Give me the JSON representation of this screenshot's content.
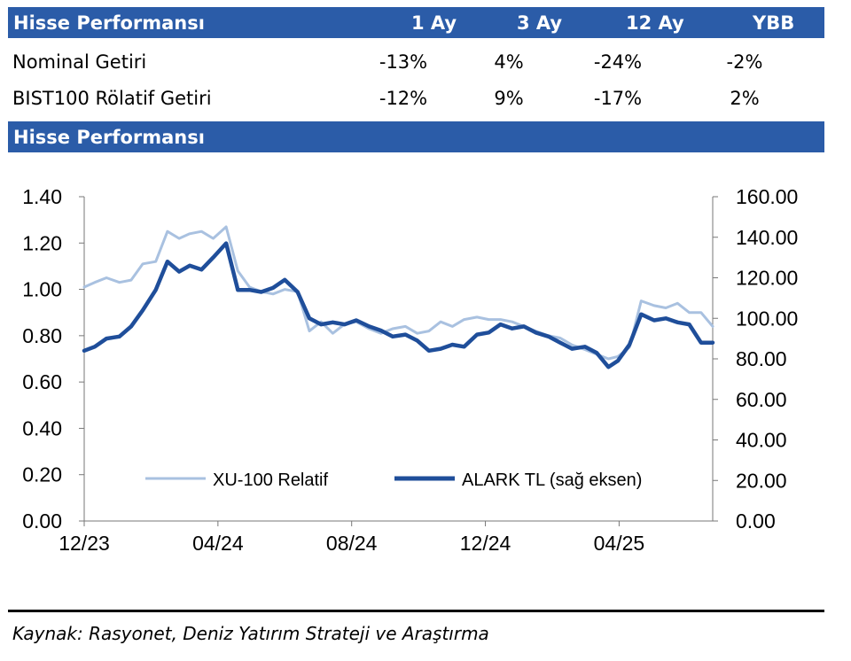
{
  "table": {
    "title": "Hisse Performansı",
    "columns": [
      "1 Ay",
      "3 Ay",
      "12 Ay",
      "YBB"
    ],
    "rows": [
      {
        "label": "Nominal Getiri",
        "values": [
          "-13%",
          "4%",
          "-24%",
          "-2%"
        ]
      },
      {
        "label": "BIST100 Rölatif Getiri",
        "values": [
          "-12%",
          "9%",
          "-17%",
          "2%"
        ]
      }
    ]
  },
  "chart_title": "Hisse Performansı",
  "source": "Kaynak: Rasyonet, Deniz Yatırım Strateji ve Araştırma",
  "chart_data": {
    "type": "line",
    "x_ticks": [
      "12/23",
      "04/24",
      "08/24",
      "12/24",
      "04/25"
    ],
    "x_range": [
      "2023-12-01",
      "2025-05-20"
    ],
    "y_left": {
      "range": [
        0.0,
        1.4
      ],
      "ticks": [
        "0.00",
        "0.20",
        "0.40",
        "0.60",
        "0.80",
        "1.00",
        "1.20",
        "1.40"
      ]
    },
    "y_right": {
      "range": [
        0.0,
        160.0
      ],
      "ticks": [
        "0.00",
        "20.00",
        "40.00",
        "60.00",
        "80.00",
        "100.00",
        "120.00",
        "140.00",
        "160.00"
      ]
    },
    "legend_position": "bottom",
    "grid": false,
    "series": [
      {
        "name": "XU-100 Relatif",
        "axis": "left",
        "color": "#a9c1e0",
        "points": [
          [
            "2023-12-01",
            1.01
          ],
          [
            "2023-12-10",
            1.03
          ],
          [
            "2023-12-20",
            1.05
          ],
          [
            "2023-12-31",
            1.03
          ],
          [
            "2024-01-10",
            1.04
          ],
          [
            "2024-01-20",
            1.11
          ],
          [
            "2024-01-31",
            1.12
          ],
          [
            "2024-02-10",
            1.25
          ],
          [
            "2024-02-20",
            1.22
          ],
          [
            "2024-02-29",
            1.24
          ],
          [
            "2024-03-10",
            1.25
          ],
          [
            "2024-03-20",
            1.22
          ],
          [
            "2024-03-31",
            1.27
          ],
          [
            "2024-04-10",
            1.08
          ],
          [
            "2024-04-20",
            1.01
          ],
          [
            "2024-04-30",
            0.99
          ],
          [
            "2024-05-10",
            0.98
          ],
          [
            "2024-05-20",
            1.0
          ],
          [
            "2024-05-31",
            0.99
          ],
          [
            "2024-06-10",
            0.82
          ],
          [
            "2024-06-20",
            0.86
          ],
          [
            "2024-06-30",
            0.81
          ],
          [
            "2024-07-10",
            0.85
          ],
          [
            "2024-07-20",
            0.86
          ],
          [
            "2024-07-31",
            0.83
          ],
          [
            "2024-08-10",
            0.81
          ],
          [
            "2024-08-20",
            0.83
          ],
          [
            "2024-08-31",
            0.84
          ],
          [
            "2024-09-10",
            0.81
          ],
          [
            "2024-09-20",
            0.82
          ],
          [
            "2024-09-30",
            0.86
          ],
          [
            "2024-10-10",
            0.84
          ],
          [
            "2024-10-20",
            0.87
          ],
          [
            "2024-10-31",
            0.88
          ],
          [
            "2024-11-10",
            0.87
          ],
          [
            "2024-11-20",
            0.87
          ],
          [
            "2024-11-30",
            0.86
          ],
          [
            "2024-12-10",
            0.84
          ],
          [
            "2024-12-20",
            0.82
          ],
          [
            "2024-12-31",
            0.8
          ],
          [
            "2025-01-10",
            0.79
          ],
          [
            "2025-01-20",
            0.76
          ],
          [
            "2025-01-31",
            0.74
          ],
          [
            "2025-02-10",
            0.72
          ],
          [
            "2025-02-20",
            0.7
          ],
          [
            "2025-02-28",
            0.71
          ],
          [
            "2025-03-10",
            0.75
          ],
          [
            "2025-03-20",
            0.95
          ],
          [
            "2025-03-31",
            0.93
          ],
          [
            "2025-04-10",
            0.92
          ],
          [
            "2025-04-20",
            0.94
          ],
          [
            "2025-04-30",
            0.9
          ],
          [
            "2025-05-10",
            0.9
          ],
          [
            "2025-05-20",
            0.84
          ]
        ]
      },
      {
        "name": "ALARK TL (sağ eksen)",
        "axis": "right",
        "color": "#1f4e9a",
        "points": [
          [
            "2023-12-01",
            84
          ],
          [
            "2023-12-10",
            86
          ],
          [
            "2023-12-20",
            90
          ],
          [
            "2023-12-31",
            91
          ],
          [
            "2024-01-10",
            96
          ],
          [
            "2024-01-20",
            104
          ],
          [
            "2024-01-31",
            114
          ],
          [
            "2024-02-10",
            128
          ],
          [
            "2024-02-20",
            123
          ],
          [
            "2024-02-29",
            126
          ],
          [
            "2024-03-10",
            124
          ],
          [
            "2024-03-20",
            130
          ],
          [
            "2024-03-31",
            137
          ],
          [
            "2024-04-10",
            114
          ],
          [
            "2024-04-20",
            114
          ],
          [
            "2024-04-30",
            113
          ],
          [
            "2024-05-10",
            115
          ],
          [
            "2024-05-20",
            119
          ],
          [
            "2024-05-31",
            113
          ],
          [
            "2024-06-10",
            100
          ],
          [
            "2024-06-20",
            97
          ],
          [
            "2024-06-30",
            98
          ],
          [
            "2024-07-10",
            97
          ],
          [
            "2024-07-20",
            99
          ],
          [
            "2024-07-31",
            96
          ],
          [
            "2024-08-10",
            94
          ],
          [
            "2024-08-20",
            91
          ],
          [
            "2024-08-31",
            92
          ],
          [
            "2024-09-10",
            89
          ],
          [
            "2024-09-20",
            84
          ],
          [
            "2024-09-30",
            85
          ],
          [
            "2024-10-10",
            87
          ],
          [
            "2024-10-20",
            86
          ],
          [
            "2024-10-31",
            92
          ],
          [
            "2024-11-10",
            93
          ],
          [
            "2024-11-20",
            97
          ],
          [
            "2024-11-30",
            95
          ],
          [
            "2024-12-10",
            96
          ],
          [
            "2024-12-20",
            93
          ],
          [
            "2024-12-31",
            91
          ],
          [
            "2025-01-10",
            88
          ],
          [
            "2025-01-20",
            85
          ],
          [
            "2025-01-31",
            86
          ],
          [
            "2025-02-10",
            83
          ],
          [
            "2025-02-20",
            76
          ],
          [
            "2025-02-28",
            79
          ],
          [
            "2025-03-10",
            87
          ],
          [
            "2025-03-20",
            102
          ],
          [
            "2025-03-31",
            99
          ],
          [
            "2025-04-10",
            100
          ],
          [
            "2025-04-20",
            98
          ],
          [
            "2025-04-30",
            97
          ],
          [
            "2025-05-10",
            88
          ],
          [
            "2025-05-20",
            88
          ]
        ]
      }
    ]
  }
}
